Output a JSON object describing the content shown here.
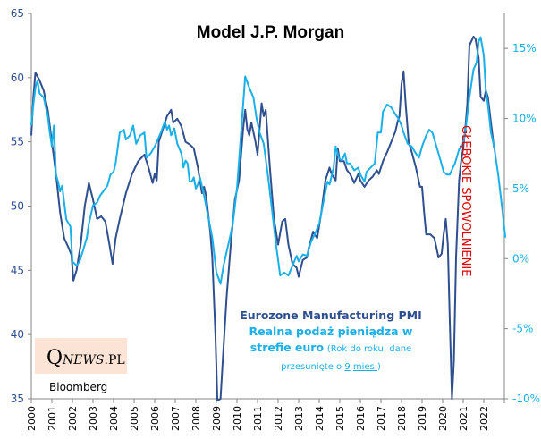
{
  "chart_data": {
    "type": "line",
    "title": "Model J.P. Morgan",
    "xlabel": "",
    "ylabel_left": "",
    "ylabel_right": "",
    "x_ticks": [
      "2000",
      "2001",
      "2002",
      "2003",
      "2004",
      "2005",
      "2006",
      "2007",
      "2008",
      "2009",
      "2010",
      "2011",
      "2012",
      "2013",
      "2014",
      "2015",
      "2016",
      "2017",
      "2018",
      "2019",
      "2020",
      "2021",
      "2022"
    ],
    "xlim": [
      2000,
      2023
    ],
    "y_left": {
      "ticks": [
        "35",
        "40",
        "45",
        "50",
        "55",
        "60",
        "65"
      ],
      "ylim": [
        35,
        65
      ]
    },
    "y_right": {
      "ticks": [
        "-10%",
        "-5%",
        "0%",
        "5%",
        "10%",
        "15%"
      ],
      "ylim": [
        -10,
        17.5
      ]
    },
    "grid": false,
    "series": [
      {
        "name": "Eurozone Manufacturing PMI",
        "axis": "left",
        "color": "#2f4f8f",
        "points": [
          [
            2000.0,
            55.5
          ],
          [
            2000.1,
            58.5
          ],
          [
            2000.2,
            60.4
          ],
          [
            2000.4,
            59.8
          ],
          [
            2000.6,
            59.0
          ],
          [
            2000.8,
            57.5
          ],
          [
            2001.0,
            55.0
          ],
          [
            2001.2,
            52.5
          ],
          [
            2001.4,
            49.5
          ],
          [
            2001.6,
            47.5
          ],
          [
            2001.8,
            46.8
          ],
          [
            2001.95,
            46.2
          ],
          [
            2002.05,
            44.2
          ],
          [
            2002.2,
            45.0
          ],
          [
            2002.4,
            47.0
          ],
          [
            2002.6,
            50.0
          ],
          [
            2002.8,
            51.8
          ],
          [
            2003.0,
            50.5
          ],
          [
            2003.2,
            49.0
          ],
          [
            2003.4,
            49.2
          ],
          [
            2003.6,
            48.8
          ],
          [
            2003.8,
            47.0
          ],
          [
            2003.95,
            45.5
          ],
          [
            2004.1,
            47.5
          ],
          [
            2004.3,
            49.0
          ],
          [
            2004.6,
            51.0
          ],
          [
            2004.9,
            52.5
          ],
          [
            2005.2,
            53.5
          ],
          [
            2005.5,
            54.0
          ],
          [
            2005.7,
            53.0
          ],
          [
            2005.9,
            51.8
          ],
          [
            2006.0,
            52.5
          ],
          [
            2006.1,
            52.0
          ],
          [
            2006.2,
            55.0
          ],
          [
            2006.4,
            56.0
          ],
          [
            2006.6,
            57.0
          ],
          [
            2006.8,
            57.5
          ],
          [
            2006.9,
            56.5
          ],
          [
            2007.1,
            56.8
          ],
          [
            2007.3,
            56.2
          ],
          [
            2007.5,
            55.0
          ],
          [
            2007.7,
            54.8
          ],
          [
            2007.9,
            54.5
          ],
          [
            2008.1,
            53.0
          ],
          [
            2008.3,
            51.0
          ],
          [
            2008.4,
            51.5
          ],
          [
            2008.5,
            50.8
          ],
          [
            2008.7,
            48.0
          ],
          [
            2008.8,
            46.0
          ],
          [
            2008.95,
            40.0
          ],
          [
            2009.05,
            34.5
          ],
          [
            2009.2,
            35.0
          ],
          [
            2009.35,
            39.0
          ],
          [
            2009.5,
            43.0
          ],
          [
            2009.7,
            47.0
          ],
          [
            2009.9,
            50.5
          ],
          [
            2010.1,
            52.0
          ],
          [
            2010.3,
            56.0
          ],
          [
            2010.4,
            57.5
          ],
          [
            2010.5,
            56.0
          ],
          [
            2010.6,
            55.5
          ],
          [
            2010.7,
            56.5
          ],
          [
            2010.9,
            55.0
          ],
          [
            2011.0,
            54.0
          ],
          [
            2011.1,
            56.0
          ],
          [
            2011.2,
            58.0
          ],
          [
            2011.3,
            57.0
          ],
          [
            2011.4,
            57.5
          ],
          [
            2011.6,
            53.0
          ],
          [
            2011.8,
            49.0
          ],
          [
            2012.0,
            47.0
          ],
          [
            2012.2,
            48.8
          ],
          [
            2012.35,
            49.0
          ],
          [
            2012.5,
            47.0
          ],
          [
            2012.7,
            45.5
          ],
          [
            2012.9,
            45.2
          ],
          [
            2013.0,
            44.5
          ],
          [
            2013.2,
            45.8
          ],
          [
            2013.4,
            46.0
          ],
          [
            2013.5,
            46.8
          ],
          [
            2013.7,
            48.0
          ],
          [
            2013.9,
            47.5
          ],
          [
            2014.1,
            49.5
          ],
          [
            2014.3,
            52.0
          ],
          [
            2014.5,
            53.0
          ],
          [
            2014.6,
            52.5
          ],
          [
            2014.8,
            52.0
          ],
          [
            2014.9,
            54.5
          ],
          [
            2015.0,
            53.5
          ],
          [
            2015.2,
            53.5
          ],
          [
            2015.35,
            52.8
          ],
          [
            2015.5,
            52.5
          ],
          [
            2015.7,
            51.8
          ],
          [
            2015.9,
            52.5
          ],
          [
            2016.0,
            52.0
          ],
          [
            2016.2,
            51.5
          ],
          [
            2016.4,
            52.0
          ],
          [
            2016.6,
            52.3
          ],
          [
            2016.8,
            52.8
          ],
          [
            2016.9,
            52.5
          ],
          [
            2017.1,
            53.5
          ],
          [
            2017.3,
            54.2
          ],
          [
            2017.5,
            55.0
          ],
          [
            2017.7,
            55.8
          ],
          [
            2017.8,
            56.5
          ],
          [
            2017.9,
            57.0
          ],
          [
            2018.0,
            59.5
          ],
          [
            2018.1,
            60.5
          ],
          [
            2018.2,
            58.0
          ],
          [
            2018.35,
            55.0
          ],
          [
            2018.5,
            54.2
          ],
          [
            2018.7,
            53.0
          ],
          [
            2018.9,
            51.5
          ],
          [
            2019.0,
            51.5
          ],
          [
            2019.1,
            49.5
          ],
          [
            2019.2,
            47.8
          ],
          [
            2019.4,
            47.8
          ],
          [
            2019.6,
            47.5
          ],
          [
            2019.8,
            46.0
          ],
          [
            2019.95,
            46.3
          ],
          [
            2020.05,
            47.8
          ],
          [
            2020.15,
            49.0
          ],
          [
            2020.25,
            47.0
          ],
          [
            2020.35,
            41.0
          ],
          [
            2020.45,
            35.0
          ],
          [
            2020.55,
            38.0
          ],
          [
            2020.65,
            46.0
          ],
          [
            2020.8,
            52.0
          ],
          [
            2020.9,
            53.5
          ],
          [
            2021.0,
            54.5
          ],
          [
            2021.1,
            56.0
          ],
          [
            2021.2,
            58.0
          ],
          [
            2021.3,
            62.5
          ],
          [
            2021.5,
            63.2
          ],
          [
            2021.6,
            63.0
          ],
          [
            2021.7,
            62.0
          ],
          [
            2021.75,
            61.5
          ],
          [
            2021.85,
            58.5
          ],
          [
            2022.0,
            58.2
          ],
          [
            2022.1,
            59.0
          ],
          [
            2022.2,
            58.5
          ],
          [
            2022.35,
            56.5
          ],
          [
            2022.5,
            54.5
          ]
        ]
      },
      {
        "name": "Realna podaż pieniądza w strefie euro",
        "axis": "right",
        "color": "#1ab0e8",
        "note": "(Rok do roku, dane przesunięte o 9 mies.)",
        "points": [
          [
            2000.0,
            9.5
          ],
          [
            2000.1,
            11.0
          ],
          [
            2000.2,
            12.2
          ],
          [
            2000.3,
            12.7
          ],
          [
            2000.4,
            11.8
          ],
          [
            2000.6,
            11.5
          ],
          [
            2000.8,
            10.2
          ],
          [
            2000.9,
            9.0
          ],
          [
            2001.0,
            8.0
          ],
          [
            2001.1,
            9.5
          ],
          [
            2001.2,
            6.0
          ],
          [
            2001.3,
            5.5
          ],
          [
            2001.4,
            4.8
          ],
          [
            2001.5,
            5.2
          ],
          [
            2001.7,
            2.8
          ],
          [
            2001.9,
            2.3
          ],
          [
            2002.0,
            -0.2
          ],
          [
            2002.2,
            -0.5
          ],
          [
            2002.35,
            -0.2
          ],
          [
            2002.5,
            0.5
          ],
          [
            2002.7,
            1.5
          ],
          [
            2002.8,
            2.5
          ],
          [
            2003.0,
            3.8
          ],
          [
            2003.2,
            4.0
          ],
          [
            2003.35,
            4.5
          ],
          [
            2003.5,
            4.8
          ],
          [
            2003.7,
            5.2
          ],
          [
            2003.85,
            6.0
          ],
          [
            2004.0,
            6.2
          ],
          [
            2004.1,
            6.8
          ],
          [
            2004.3,
            9.0
          ],
          [
            2004.5,
            9.2
          ],
          [
            2004.6,
            8.5
          ],
          [
            2004.8,
            8.8
          ],
          [
            2004.95,
            9.5
          ],
          [
            2005.1,
            8.2
          ],
          [
            2005.3,
            8.8
          ],
          [
            2005.5,
            9.0
          ],
          [
            2005.6,
            7.2
          ],
          [
            2005.8,
            7.5
          ],
          [
            2006.0,
            8.0
          ],
          [
            2006.15,
            8.5
          ],
          [
            2006.3,
            9.0
          ],
          [
            2006.5,
            9.8
          ],
          [
            2006.6,
            9.2
          ],
          [
            2006.7,
            9.5
          ],
          [
            2006.8,
            8.8
          ],
          [
            2006.95,
            9.3
          ],
          [
            2007.1,
            8.2
          ],
          [
            2007.3,
            7.5
          ],
          [
            2007.4,
            6.5
          ],
          [
            2007.5,
            7.0
          ],
          [
            2007.6,
            6.8
          ],
          [
            2007.7,
            5.5
          ],
          [
            2007.8,
            5.5
          ],
          [
            2007.9,
            5.8
          ],
          [
            2008.0,
            5.0
          ],
          [
            2008.1,
            5.3
          ],
          [
            2008.2,
            5.8
          ],
          [
            2008.4,
            4.5
          ],
          [
            2008.6,
            3.0
          ],
          [
            2008.8,
            1.5
          ],
          [
            2009.0,
            -1.0
          ],
          [
            2009.2,
            -1.8
          ],
          [
            2009.35,
            -0.5
          ],
          [
            2009.5,
            0.5
          ],
          [
            2009.7,
            1.8
          ],
          [
            2009.8,
            2.5
          ],
          [
            2010.0,
            5.0
          ],
          [
            2010.1,
            7.0
          ],
          [
            2010.2,
            9.0
          ],
          [
            2010.3,
            11.0
          ],
          [
            2010.4,
            13.0
          ],
          [
            2010.6,
            12.2
          ],
          [
            2010.8,
            11.5
          ],
          [
            2010.95,
            10.0
          ],
          [
            2011.1,
            9.0
          ],
          [
            2011.3,
            8.2
          ],
          [
            2011.5,
            6.0
          ],
          [
            2011.7,
            3.5
          ],
          [
            2011.9,
            1.0
          ],
          [
            2012.1,
            -1.2
          ],
          [
            2012.3,
            -1.0
          ],
          [
            2012.5,
            -1.2
          ],
          [
            2012.7,
            -0.5
          ],
          [
            2012.9,
            0.2
          ],
          [
            2013.0,
            -0.2
          ],
          [
            2013.2,
            0.3
          ],
          [
            2013.4,
            0.2
          ],
          [
            2013.6,
            1.2
          ],
          [
            2013.8,
            1.8
          ],
          [
            2014.0,
            2.5
          ],
          [
            2014.2,
            4.0
          ],
          [
            2014.4,
            5.5
          ],
          [
            2014.5,
            5.3
          ],
          [
            2014.7,
            6.5
          ],
          [
            2014.8,
            8.0
          ],
          [
            2014.95,
            7.2
          ],
          [
            2015.1,
            7.0
          ],
          [
            2015.25,
            7.5
          ],
          [
            2015.35,
            6.8
          ],
          [
            2015.5,
            6.8
          ],
          [
            2015.7,
            6.3
          ],
          [
            2015.9,
            6.5
          ],
          [
            2016.0,
            6.0
          ],
          [
            2016.2,
            5.5
          ],
          [
            2016.3,
            6.2
          ],
          [
            2016.5,
            6.5
          ],
          [
            2016.7,
            6.8
          ],
          [
            2016.85,
            9.0
          ],
          [
            2017.0,
            9.0
          ],
          [
            2017.1,
            10.5
          ],
          [
            2017.3,
            11.0
          ],
          [
            2017.5,
            10.8
          ],
          [
            2017.7,
            10.3
          ],
          [
            2017.85,
            10.0
          ],
          [
            2018.0,
            9.5
          ],
          [
            2018.1,
            9.0
          ],
          [
            2018.3,
            8.2
          ],
          [
            2018.5,
            8.0
          ],
          [
            2018.7,
            7.5
          ],
          [
            2018.85,
            7.2
          ],
          [
            2019.0,
            8.0
          ],
          [
            2019.2,
            8.8
          ],
          [
            2019.35,
            9.2
          ],
          [
            2019.5,
            9.0
          ],
          [
            2019.7,
            8.0
          ],
          [
            2019.9,
            7.0
          ],
          [
            2020.05,
            6.2
          ],
          [
            2020.2,
            6.0
          ],
          [
            2020.35,
            6.0
          ],
          [
            2020.5,
            6.5
          ],
          [
            2020.6,
            6.8
          ],
          [
            2020.8,
            7.8
          ],
          [
            2020.95,
            8.0
          ],
          [
            2021.1,
            9.0
          ],
          [
            2021.3,
            11.5
          ],
          [
            2021.5,
            13.5
          ],
          [
            2021.65,
            14.0
          ],
          [
            2021.75,
            15.5
          ],
          [
            2021.85,
            15.8
          ],
          [
            2022.0,
            14.5
          ],
          [
            2022.1,
            12.0
          ],
          [
            2022.2,
            11.0
          ],
          [
            2022.35,
            9.0
          ],
          [
            2022.5,
            8.0
          ],
          [
            2022.7,
            6.0
          ],
          [
            2022.9,
            3.5
          ],
          [
            2023.05,
            1.5
          ]
        ]
      }
    ],
    "annotations": [
      "GŁĘBOKIE SPOWOLNIENIE"
    ],
    "legend_placement": "bottom-center"
  },
  "legend": {
    "series1": "Eurozone Manufacturing PMI",
    "series2": "Realna podaż pieniądza w strefie euro",
    "series2_note_prefix": "(Rok do roku, dane przesunięte o ",
    "series2_note_num": "9",
    "series2_note_unit": "mies.",
    "series2_note_suffix": ")"
  },
  "logo": {
    "q": "Q",
    "news": "NEWS",
    "pl": ".PL"
  },
  "source": "Bloomberg",
  "annotation": "GŁĘBOKIE SPOWOLNIENIE"
}
